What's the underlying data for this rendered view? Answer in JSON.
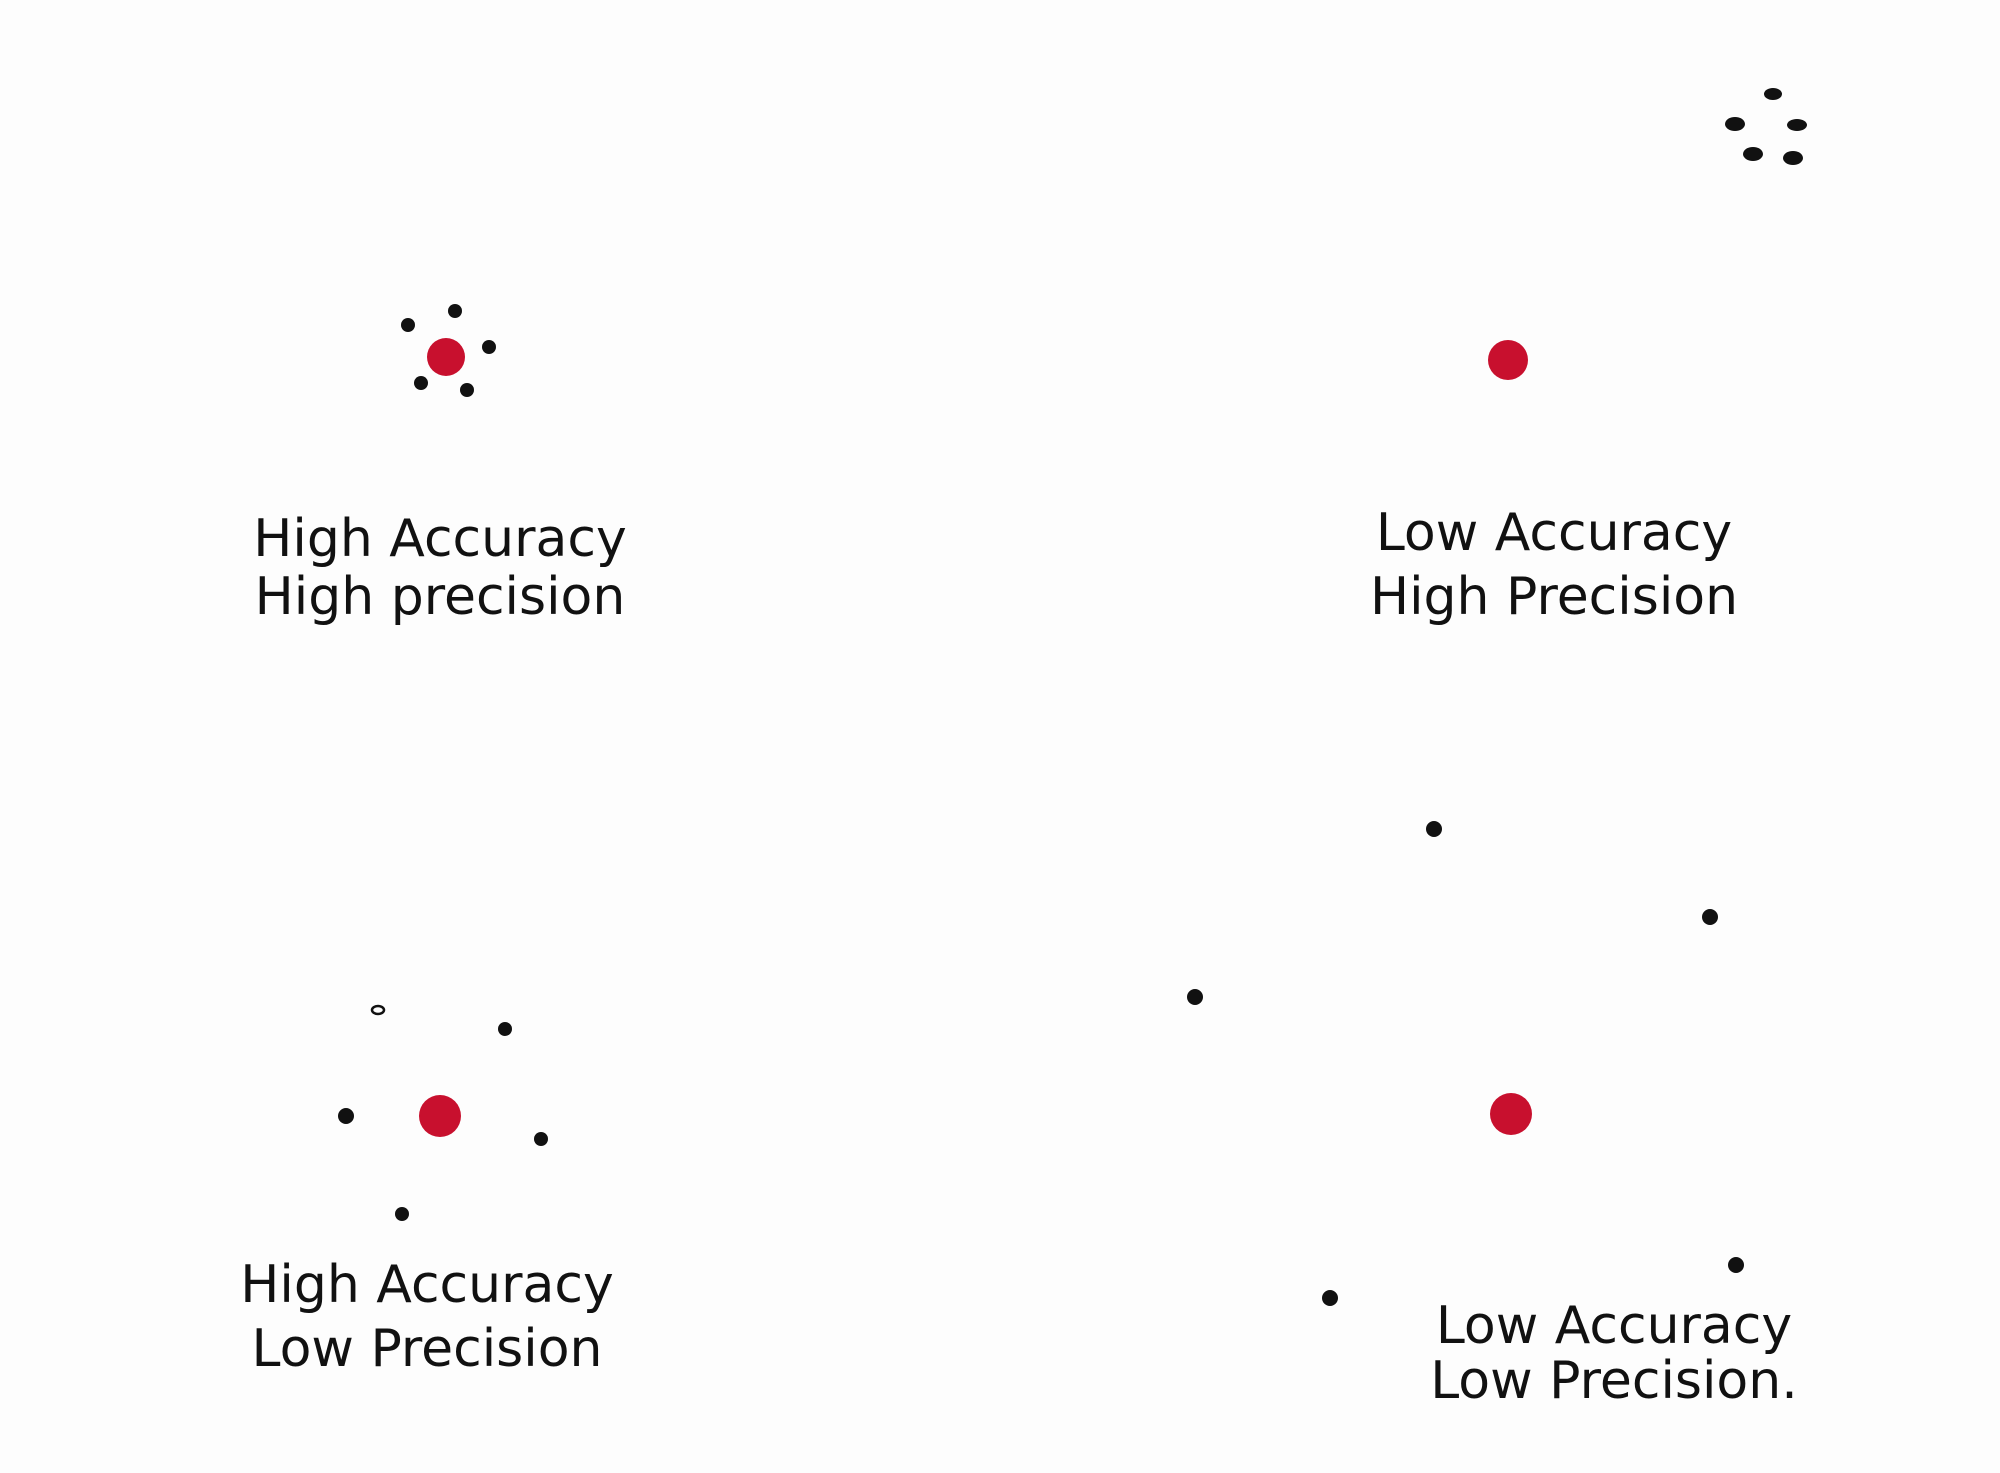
{
  "panels": [
    {
      "line1": "High Accuracy",
      "line2": "High precision"
    },
    {
      "line1": "Low Accuracy",
      "line2": "High Precision"
    },
    {
      "line1": "High Accuracy",
      "line2": "Low Precision"
    },
    {
      "line1": "Low Accuracy",
      "line2": "Low Precision."
    }
  ]
}
